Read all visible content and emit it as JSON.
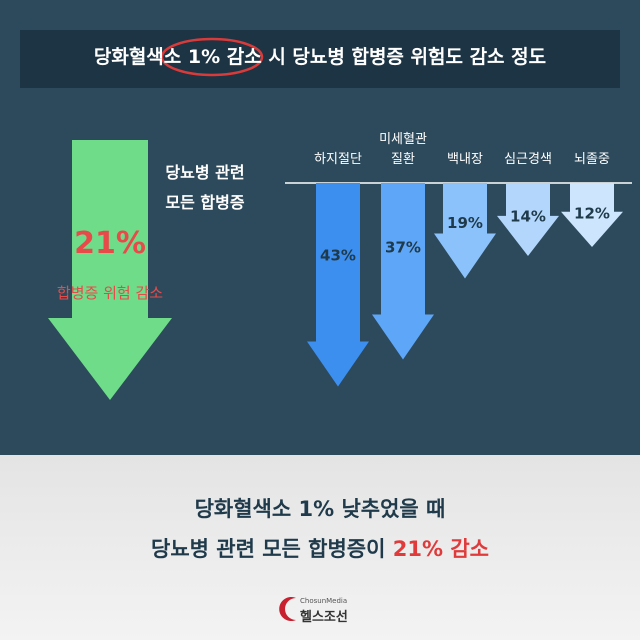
{
  "title": "당화혈색소 1% 감소 시 당뇨병 합병증 위험도 감소 정도",
  "summary": {
    "label": "당뇨병 관련\n모든 합병증",
    "value": 21,
    "value_label": "21%",
    "caption": "합병증 위험 감소",
    "color": "#6fdc8a"
  },
  "chart_data": {
    "type": "bar",
    "categories": [
      "하지절단",
      "미세혈관\n질환",
      "백내장",
      "심근경색",
      "뇌졸중"
    ],
    "values": [
      43,
      37,
      19,
      14,
      12
    ],
    "value_labels": [
      "43%",
      "37%",
      "19%",
      "14%",
      "12%"
    ],
    "colors": [
      "#3d8fef",
      "#5ea6f7",
      "#8cc2fb",
      "#b3d7fc",
      "#cde5fd"
    ]
  },
  "conclusion": {
    "line1": "당화혈색소 1% 낮추었을 때",
    "line2": "당뇨병 관련 모든 합병증이 ",
    "highlight": "21% 감소"
  },
  "logo": {
    "small": "ChosunMedia",
    "name": "헬스조선"
  }
}
